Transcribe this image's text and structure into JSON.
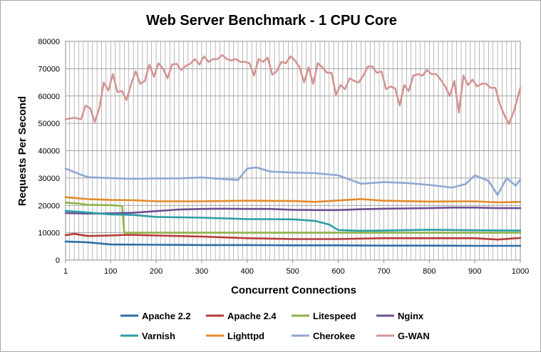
{
  "chart_data": {
    "type": "line",
    "title": "Web Server Benchmark - 1 CPU Core",
    "xlabel": "Concurrent Connections",
    "ylabel": "Requests Per Second",
    "xlim": [
      1,
      1000
    ],
    "ylim": [
      0,
      80000
    ],
    "x_ticks": [
      1,
      100,
      200,
      300,
      400,
      500,
      600,
      700,
      800,
      900,
      1000
    ],
    "x_tick_labels": [
      "1",
      "100",
      "200",
      "300",
      "400",
      "500",
      "600",
      "700",
      "800",
      "900",
      "1000"
    ],
    "y_ticks": [
      0,
      10000,
      20000,
      30000,
      40000,
      50000,
      60000,
      70000,
      80000
    ],
    "y_tick_labels": [
      "0",
      "10000",
      "20000",
      "30000",
      "40000",
      "50000",
      "60000",
      "70000",
      "80000"
    ],
    "grid": true,
    "legend_position": "bottom",
    "series": [
      {
        "name": "Apache 2.2",
        "color": "#2f6ea7",
        "points": [
          [
            1,
            6800
          ],
          [
            50,
            6500
          ],
          [
            100,
            5700
          ],
          [
            200,
            5600
          ],
          [
            300,
            5500
          ],
          [
            400,
            5500
          ],
          [
            500,
            5400
          ],
          [
            600,
            5400
          ],
          [
            700,
            5300
          ],
          [
            800,
            5300
          ],
          [
            900,
            5200
          ],
          [
            1000,
            5200
          ]
        ]
      },
      {
        "name": "Apache 2.4",
        "color": "#b83a36",
        "points": [
          [
            1,
            9100
          ],
          [
            20,
            9600
          ],
          [
            50,
            8800
          ],
          [
            100,
            9000
          ],
          [
            130,
            9200
          ],
          [
            150,
            9200
          ],
          [
            200,
            9000
          ],
          [
            300,
            8600
          ],
          [
            400,
            8000
          ],
          [
            500,
            7700
          ],
          [
            600,
            7700
          ],
          [
            700,
            8000
          ],
          [
            800,
            8000
          ],
          [
            900,
            8000
          ],
          [
            950,
            7500
          ],
          [
            1000,
            8100
          ]
        ]
      },
      {
        "name": "Litespeed",
        "color": "#8fb24a",
        "points": [
          [
            1,
            21000
          ],
          [
            30,
            20700
          ],
          [
            50,
            20200
          ],
          [
            100,
            20100
          ],
          [
            125,
            19800
          ],
          [
            130,
            10000
          ],
          [
            200,
            10000
          ],
          [
            300,
            10000
          ],
          [
            400,
            10000
          ],
          [
            500,
            10000
          ],
          [
            600,
            10000
          ],
          [
            700,
            10000
          ],
          [
            800,
            10000
          ],
          [
            900,
            10000
          ],
          [
            1000,
            10000
          ]
        ]
      },
      {
        "name": "Nginx",
        "color": "#6e4f93",
        "points": [
          [
            1,
            17200
          ],
          [
            50,
            17000
          ],
          [
            100,
            17100
          ],
          [
            150,
            17300
          ],
          [
            200,
            17900
          ],
          [
            250,
            18500
          ],
          [
            300,
            18700
          ],
          [
            350,
            18800
          ],
          [
            400,
            18700
          ],
          [
            450,
            18700
          ],
          [
            500,
            18400
          ],
          [
            550,
            18300
          ],
          [
            600,
            18300
          ],
          [
            650,
            18600
          ],
          [
            700,
            18800
          ],
          [
            750,
            18900
          ],
          [
            800,
            19000
          ],
          [
            850,
            19200
          ],
          [
            900,
            19200
          ],
          [
            950,
            19000
          ],
          [
            1000,
            19000
          ]
        ]
      },
      {
        "name": "Varnish",
        "color": "#2aa0a6",
        "points": [
          [
            1,
            18000
          ],
          [
            50,
            17400
          ],
          [
            100,
            16700
          ],
          [
            150,
            16500
          ],
          [
            200,
            15800
          ],
          [
            300,
            15500
          ],
          [
            400,
            15000
          ],
          [
            500,
            14900
          ],
          [
            550,
            14300
          ],
          [
            580,
            13000
          ],
          [
            600,
            11000
          ],
          [
            650,
            10700
          ],
          [
            700,
            10800
          ],
          [
            800,
            11100
          ],
          [
            900,
            10900
          ],
          [
            1000,
            10800
          ]
        ]
      },
      {
        "name": "Lighttpd",
        "color": "#e58a2a",
        "points": [
          [
            1,
            23000
          ],
          [
            50,
            22300
          ],
          [
            100,
            22000
          ],
          [
            150,
            21900
          ],
          [
            200,
            21500
          ],
          [
            300,
            21500
          ],
          [
            400,
            21700
          ],
          [
            500,
            21600
          ],
          [
            550,
            21300
          ],
          [
            600,
            21800
          ],
          [
            650,
            22300
          ],
          [
            700,
            21700
          ],
          [
            800,
            21400
          ],
          [
            900,
            21500
          ],
          [
            950,
            21100
          ],
          [
            1000,
            21300
          ]
        ]
      },
      {
        "name": "Cherokee",
        "color": "#8fa7d3",
        "points": [
          [
            1,
            33500
          ],
          [
            30,
            31500
          ],
          [
            50,
            30300
          ],
          [
            100,
            30000
          ],
          [
            150,
            29700
          ],
          [
            200,
            29900
          ],
          [
            250,
            29900
          ],
          [
            300,
            30200
          ],
          [
            350,
            29600
          ],
          [
            380,
            29300
          ],
          [
            400,
            33500
          ],
          [
            420,
            33900
          ],
          [
            450,
            32400
          ],
          [
            500,
            32000
          ],
          [
            550,
            31800
          ],
          [
            600,
            31000
          ],
          [
            650,
            27900
          ],
          [
            700,
            28500
          ],
          [
            750,
            28200
          ],
          [
            800,
            27500
          ],
          [
            850,
            26500
          ],
          [
            880,
            27800
          ],
          [
            900,
            31000
          ],
          [
            930,
            29000
          ],
          [
            950,
            23800
          ],
          [
            970,
            30000
          ],
          [
            990,
            27200
          ],
          [
            1000,
            29500
          ]
        ]
      },
      {
        "name": "G-WAN",
        "color": "#d49593",
        "points": [
          [
            1,
            51500
          ],
          [
            20,
            52000
          ],
          [
            35,
            51500
          ],
          [
            45,
            56500
          ],
          [
            55,
            55500
          ],
          [
            65,
            50500
          ],
          [
            75,
            55500
          ],
          [
            85,
            65000
          ],
          [
            95,
            62000
          ],
          [
            105,
            68000
          ],
          [
            115,
            61500
          ],
          [
            125,
            61800
          ],
          [
            135,
            58500
          ],
          [
            145,
            64500
          ],
          [
            155,
            69000
          ],
          [
            165,
            64500
          ],
          [
            175,
            65500
          ],
          [
            185,
            71500
          ],
          [
            195,
            67000
          ],
          [
            205,
            72000
          ],
          [
            215,
            70000
          ],
          [
            225,
            66500
          ],
          [
            235,
            71500
          ],
          [
            245,
            71800
          ],
          [
            255,
            69500
          ],
          [
            265,
            71000
          ],
          [
            275,
            71800
          ],
          [
            285,
            73500
          ],
          [
            295,
            71500
          ],
          [
            305,
            74500
          ],
          [
            315,
            72500
          ],
          [
            325,
            73500
          ],
          [
            335,
            73500
          ],
          [
            345,
            75000
          ],
          [
            355,
            73500
          ],
          [
            365,
            73000
          ],
          [
            375,
            73500
          ],
          [
            385,
            72500
          ],
          [
            395,
            72500
          ],
          [
            405,
            72000
          ],
          [
            415,
            67500
          ],
          [
            425,
            73500
          ],
          [
            435,
            72500
          ],
          [
            445,
            74000
          ],
          [
            455,
            67800
          ],
          [
            465,
            69000
          ],
          [
            475,
            72500
          ],
          [
            485,
            72000
          ],
          [
            495,
            74500
          ],
          [
            505,
            73000
          ],
          [
            515,
            70500
          ],
          [
            525,
            65000
          ],
          [
            535,
            70500
          ],
          [
            545,
            64500
          ],
          [
            555,
            72000
          ],
          [
            565,
            70500
          ],
          [
            575,
            68500
          ],
          [
            585,
            68500
          ],
          [
            595,
            60500
          ],
          [
            605,
            64000
          ],
          [
            615,
            62500
          ],
          [
            625,
            66500
          ],
          [
            635,
            65500
          ],
          [
            645,
            65000
          ],
          [
            655,
            67500
          ],
          [
            665,
            70800
          ],
          [
            675,
            70800
          ],
          [
            685,
            68500
          ],
          [
            695,
            69000
          ],
          [
            705,
            62500
          ],
          [
            715,
            63500
          ],
          [
            725,
            62800
          ],
          [
            735,
            56500
          ],
          [
            745,
            64000
          ],
          [
            755,
            61800
          ],
          [
            765,
            67500
          ],
          [
            775,
            68000
          ],
          [
            785,
            67500
          ],
          [
            795,
            69500
          ],
          [
            805,
            68000
          ],
          [
            815,
            68000
          ],
          [
            825,
            66000
          ],
          [
            835,
            63500
          ],
          [
            845,
            60000
          ],
          [
            855,
            65500
          ],
          [
            865,
            54000
          ],
          [
            875,
            67500
          ],
          [
            885,
            64000
          ],
          [
            895,
            66000
          ],
          [
            905,
            63500
          ],
          [
            915,
            64500
          ],
          [
            925,
            64500
          ],
          [
            935,
            63000
          ],
          [
            945,
            63000
          ],
          [
            955,
            57000
          ],
          [
            965,
            53000
          ],
          [
            975,
            49800
          ],
          [
            985,
            54000
          ],
          [
            995,
            60000
          ],
          [
            1000,
            63000
          ]
        ]
      }
    ]
  }
}
